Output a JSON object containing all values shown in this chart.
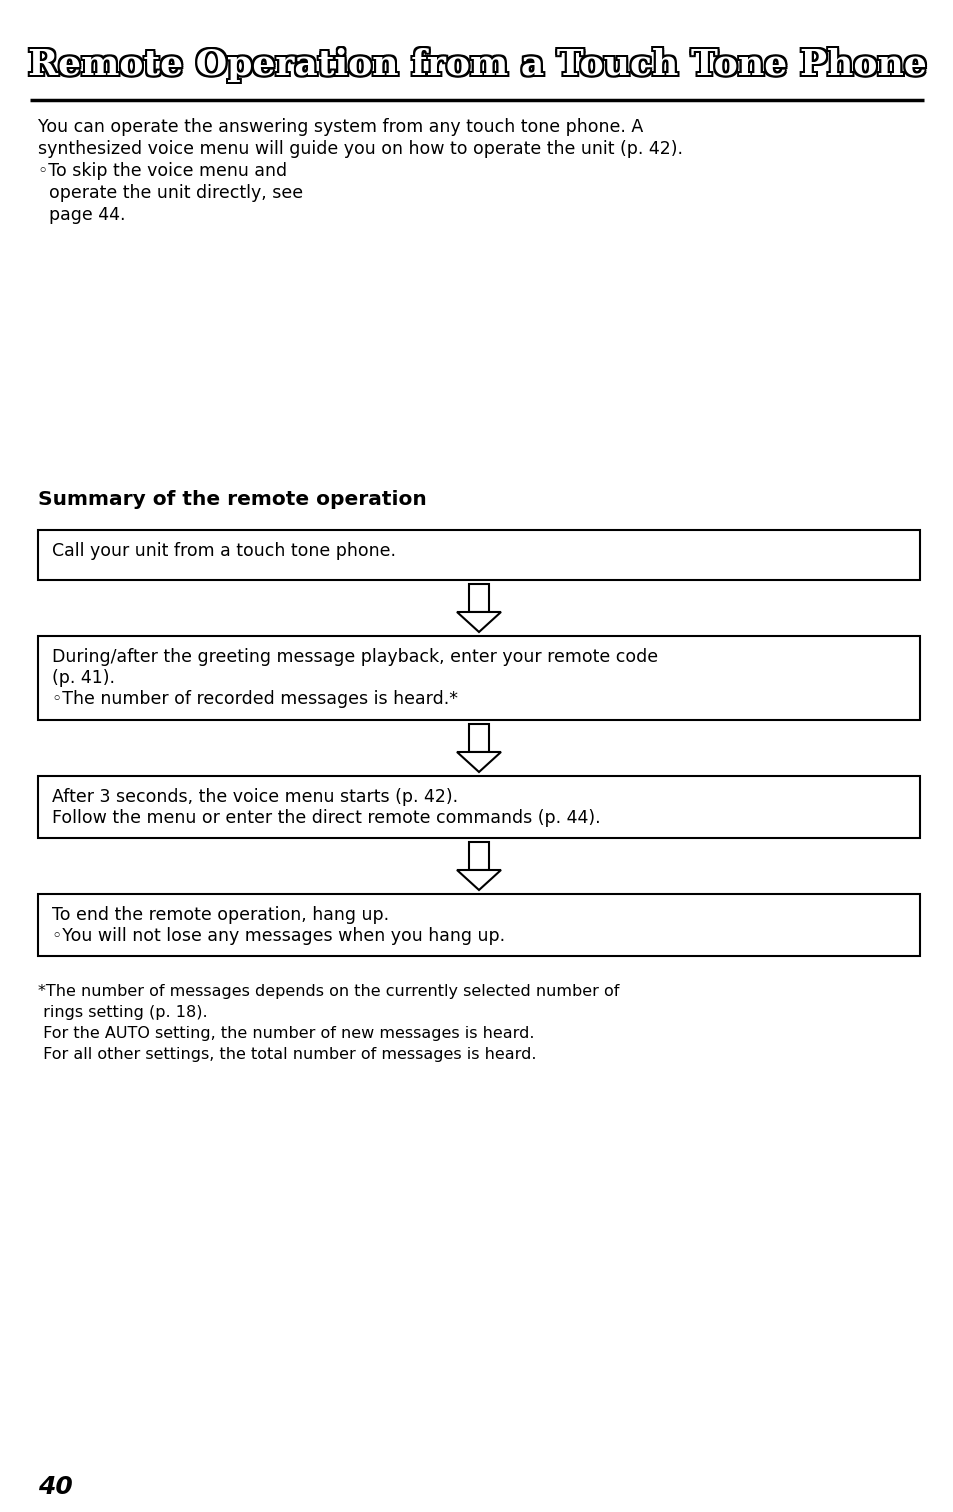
{
  "title": "Remote Operation from a Touch Tone Phone",
  "bg_color": "#ffffff",
  "intro_line1": "You can operate the answering system from any touch tone phone. A",
  "intro_line2": "synthesized voice menu will guide you on how to operate the unit (p. 42).",
  "bullet_line1": "◦To skip the voice menu and",
  "bullet_line2": "  operate the unit directly, see",
  "bullet_line3": "  page 44.",
  "section_title": "Summary of the remote operation",
  "box1": "Call your unit from a touch tone phone.",
  "box2_line1": "During/after the greeting message playback, enter your remote code",
  "box2_line2": "(p. 41).",
  "box2_line3": "◦The number of recorded messages is heard.*",
  "box3_line1": "After 3 seconds, the voice menu starts (p. 42).",
  "box3_line2": "Follow the menu or enter the direct remote commands (p. 44).",
  "box4_line1": "To end the remote operation, hang up.",
  "box4_line2": "◦You will not lose any messages when you hang up.",
  "footnote_line1": "*The number of messages depends on the currently selected number of",
  "footnote_line2": " rings setting (p. 18).",
  "footnote_line3": " For the AUTO setting, the number of new messages is heard.",
  "footnote_line4": " For all other settings, the total number of messages is heard.",
  "page_number": "40",
  "title_fontsize": 26,
  "body_fontsize": 12.5,
  "section_fontsize": 14.5,
  "footnote_fontsize": 11.5
}
